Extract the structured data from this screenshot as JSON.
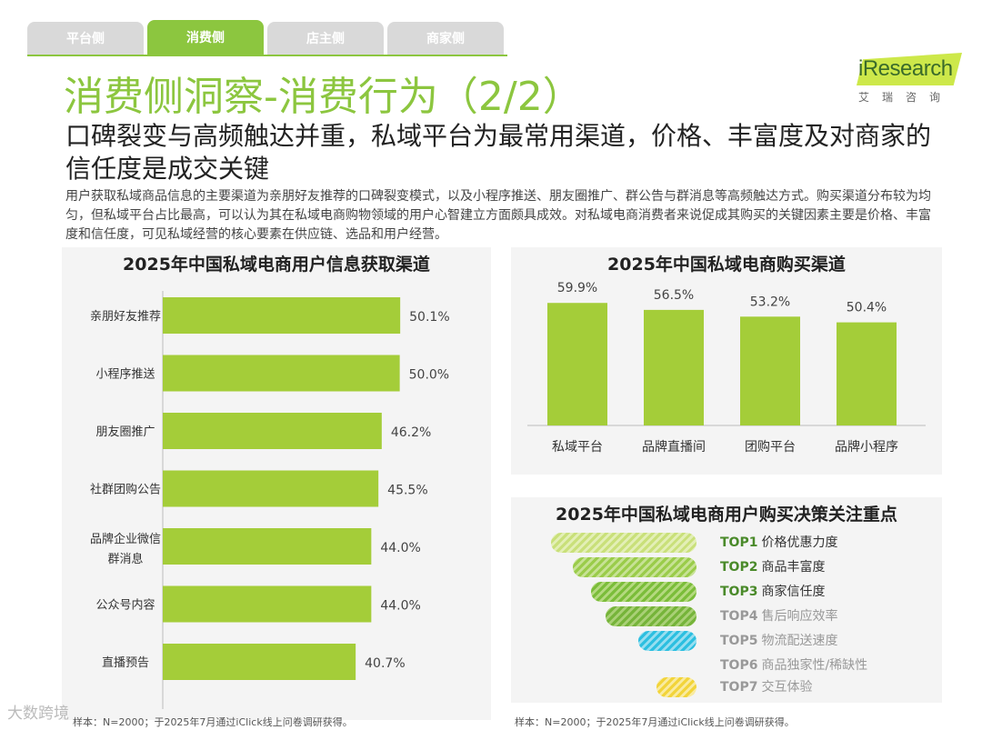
{
  "tabs": [
    {
      "label": "平台侧",
      "active": false
    },
    {
      "label": "消费侧",
      "active": true
    },
    {
      "label": "店主侧",
      "active": false
    },
    {
      "label": "商家侧",
      "active": false
    }
  ],
  "logo": {
    "word": "iResearch",
    "sub": "艾瑞咨询"
  },
  "title": "消费侧洞察-消费行为（2/2）",
  "subtitle": "口碑裂变与高频触达并重，私域平台为最常用渠道，价格、丰富度及对商家的信任度是成交关键",
  "description": "用户获取私域商品信息的主要渠道为亲朋好友推荐的口碑裂变模式，以及小程序推送、朋友圈推广、群公告与群消息等高频触达方式。购买渠道分布较为均匀，但私域平台占比最高，可以认为其在私域电商购物领域的用户心智建立方面颇具成效。对私域电商消费者来说促成其购买的关键因素主要是价格、丰富度和信任度，可见私域经营的核心要素在供应链、选品和用户经营。",
  "chart_data": [
    {
      "type": "bar",
      "orientation": "horizontal",
      "title": "2025年中国私域电商用户信息获取渠道",
      "categories": [
        "亲朋好友推荐",
        "小程序推送",
        "朋友圈推广",
        "社群团购公告",
        "品牌企业微信群消息",
        "公众号内容",
        "直播预告"
      ],
      "values": [
        50.1,
        50.0,
        46.2,
        45.5,
        44.0,
        44.0,
        40.7
      ],
      "data_labels": [
        "50.1%",
        "50.0%",
        "46.2%",
        "45.5%",
        "44.0%",
        "44.0%",
        "40.7%"
      ],
      "unit": "%",
      "xlim": [
        0,
        80
      ],
      "color": "#a4cd39"
    },
    {
      "type": "bar",
      "orientation": "vertical",
      "title": "2025年中国私域电商购买渠道",
      "categories": [
        "私域平台",
        "品牌直播间",
        "团购平台",
        "品牌小程序"
      ],
      "values": [
        59.9,
        56.5,
        53.2,
        50.4
      ],
      "data_labels": [
        "59.9%",
        "56.5%",
        "53.2%",
        "50.4%"
      ],
      "unit": "%",
      "ylim": [
        0,
        80
      ],
      "color": "#a4cd39"
    }
  ],
  "decision": {
    "title": "2025年中国私域电商用户购买决策关注重点",
    "items": [
      {
        "rank": "TOP1",
        "label": "价格优惠力度",
        "color": "#4a8a2a"
      },
      {
        "rank": "TOP2",
        "label": "商品丰富度",
        "color": "#4a8a2a"
      },
      {
        "rank": "TOP3",
        "label": "商家信任度",
        "color": "#4a8a2a"
      },
      {
        "rank": "TOP4",
        "label": "售后响应效率",
        "color": "#999999"
      },
      {
        "rank": "TOP5",
        "label": "物流配送速度",
        "color": "#999999"
      },
      {
        "rank": "TOP6",
        "label": "商品独家性/稀缺性",
        "color": "#999999"
      },
      {
        "rank": "TOP7",
        "label": "交互体验",
        "color": "#999999"
      }
    ]
  },
  "notes": {
    "left": "样本：N=2000；于2025年7月通过iClick线上问卷调研获得。",
    "right": "样本：N=2000；于2025年7月通过iClick线上问卷调研获得。"
  },
  "watermark": "大数跨境"
}
